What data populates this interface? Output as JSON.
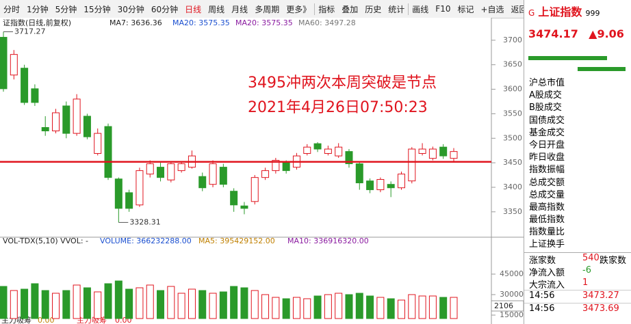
{
  "toolbar": {
    "tabs": [
      "分时",
      "1分钟",
      "5分钟",
      "15分钟",
      "30分钟",
      "60分钟",
      "日线",
      "周线",
      "月线",
      "多周期",
      "更多》",
      "指标",
      "叠加",
      "历史",
      "统计",
      "画线",
      "F10",
      "标记",
      "+自选",
      "返回"
    ],
    "active": 6
  },
  "chart_data": {
    "type": "candlestick",
    "title": "证指数(日线,前复权)",
    "indicators": [
      {
        "text": "MA7: 3636.36",
        "color": "#222222"
      },
      {
        "text": "MA20: 3575.35",
        "color": "#1a4fd0"
      },
      {
        "text": "MA20: 3575.35",
        "color": "#8a1aa0"
      },
      {
        "text": "MA60: 3497.28",
        "color": "#777777"
      }
    ],
    "annotation": [
      "3495冲两次本周突破是节点",
      "2021年4月26日07:50:23"
    ],
    "max_label": 3717.27,
    "min_label": 3328.31,
    "hline": 3452,
    "hline_color": "#e0141e",
    "ylim": [
      3301,
      3743
    ],
    "yticks": [
      3350,
      3400,
      3450,
      3500,
      3550,
      3600,
      3650,
      3700
    ],
    "up_color": "#e0141e",
    "down_color": "#2a9a2a",
    "open": [
      3706,
      3629,
      3643,
      3601,
      3522,
      3515,
      3566,
      3510,
      3545,
      3469,
      3524,
      3417,
      3389,
      3364,
      3427,
      3441,
      3415,
      3434,
      3441,
      3422,
      3406,
      3441,
      3392,
      3362,
      3371,
      3420,
      3434,
      3450,
      3441,
      3469,
      3489,
      3469,
      3464,
      3473,
      3448,
      3413,
      3395,
      3406,
      3399,
      3413,
      3469,
      3459,
      3482,
      3459
    ],
    "close": [
      3601,
      3671,
      3573,
      3573,
      3515,
      3552,
      3510,
      3580,
      3503,
      3510,
      3420,
      3357,
      3357,
      3434,
      3448,
      3420,
      3448,
      3448,
      3464,
      3399,
      3448,
      3406,
      3364,
      3357,
      3420,
      3434,
      3455,
      3434,
      3464,
      3482,
      3478,
      3478,
      3482,
      3448,
      3409,
      3395,
      3416,
      3399,
      3427,
      3478,
      3478,
      3478,
      3464,
      3473
    ],
    "high": [
      3717.27,
      3680,
      3650,
      3610,
      3545,
      3560,
      3575,
      3590,
      3550,
      3520,
      3530,
      3420,
      3395,
      3440,
      3455,
      3450,
      3452,
      3452,
      3475,
      3430,
      3455,
      3448,
      3398,
      3370,
      3425,
      3440,
      3460,
      3455,
      3470,
      3488,
      3492,
      3485,
      3490,
      3478,
      3452,
      3418,
      3420,
      3412,
      3432,
      3482,
      3490,
      3483,
      3488,
      3480
    ],
    "low": [
      3595,
      3620,
      3568,
      3566,
      3505,
      3510,
      3500,
      3505,
      3498,
      3465,
      3415,
      3328.31,
      3350,
      3360,
      3420,
      3412,
      3410,
      3430,
      3438,
      3392,
      3400,
      3400,
      3350,
      3345,
      3365,
      3415,
      3428,
      3428,
      3436,
      3465,
      3472,
      3465,
      3460,
      3440,
      3395,
      3388,
      3390,
      3380,
      3395,
      3408,
      3465,
      3455,
      3458,
      3452
    ],
    "volume": {
      "header": [
        "VOL-TDX(5,10)  VVOL: -",
        "VOLUME: 366232288.00",
        "MA5: 395429152.00",
        "MA10: 336916320.00"
      ],
      "values": [
        36000,
        33000,
        34000,
        38000,
        33000,
        31000,
        33000,
        37000,
        35000,
        32000,
        38000,
        40000,
        34000,
        35000,
        37000,
        33000,
        36000,
        31000,
        34000,
        33000,
        31000,
        32000,
        36000,
        35000,
        33000,
        30000,
        28000,
        27000,
        28000,
        27000,
        29000,
        30000,
        31000,
        30000,
        31000,
        29000,
        28000,
        27000,
        26000,
        30000,
        29000,
        29000,
        28000,
        28000
      ],
      "ylim": [
        12500,
        59500
      ],
      "yticks": [
        15000,
        30000,
        45000
      ],
      "box": "2106"
    },
    "footer": [
      "主力吸筹",
      "0.00",
      "主力吸筹",
      "0.00"
    ]
  },
  "side": {
    "flag": "G",
    "name": "上证指数",
    "code": "999",
    "price": "3474.17",
    "change": "▲9.06",
    "labels": [
      "沪总市值",
      "A股成交",
      "B股成交",
      "国债成交",
      "基金成交",
      "今日开盘",
      "昨日收盘",
      "指数振幅",
      "总成交额",
      "总成交量",
      "最高指数",
      "最低指数",
      "指数量比",
      "上证换手"
    ],
    "rows": [
      [
        "涨家数",
        "540",
        "跌家数"
      ],
      [
        "净流入额",
        "-6"
      ],
      [
        "大宗流入",
        "1"
      ]
    ],
    "ticks": [
      [
        "14:56",
        "3473.27"
      ],
      [
        "14:56",
        "3473.69"
      ]
    ]
  }
}
